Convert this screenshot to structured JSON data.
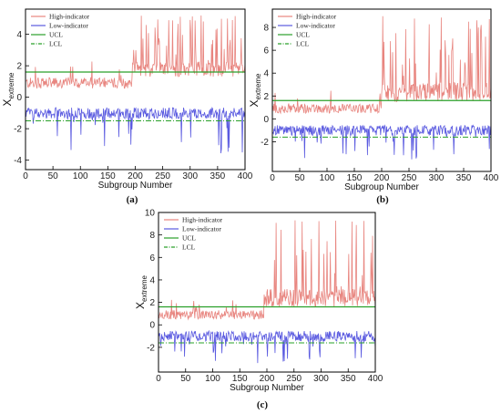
{
  "chart_data": [
    {
      "type": "line",
      "panel_label": "(a)",
      "xlabel": "Subgroup Number",
      "ylabel_main": "X",
      "ylabel_sub": "extreme",
      "xlim": [
        0,
        400
      ],
      "ylim": [
        -4.6,
        5.6
      ],
      "xticks": [
        0,
        50,
        100,
        150,
        200,
        250,
        300,
        350,
        400
      ],
      "yticks": [
        -4,
        -2,
        0,
        2,
        4
      ],
      "ucl": 1.6,
      "lcl": -1.5,
      "legend": [
        {
          "label": "High-indicator",
          "color": "#e8857f",
          "style": "solid"
        },
        {
          "label": "Low-indicator",
          "color": "#5a5ae0",
          "style": "solid"
        },
        {
          "label": "UCL",
          "color": "#2aa02a",
          "style": "solid"
        },
        {
          "label": "LCL",
          "color": "#2aa02a",
          "style": "dashdot"
        }
      ],
      "high_indicator": {
        "base": 0.9,
        "noise": 0.35,
        "shift_at": 195,
        "shift_base": 1.3,
        "shift_noise": 1.6,
        "peak": 5.2
      },
      "low_indicator": {
        "base": -1.0,
        "noise": 0.35,
        "spike_depth": -3.7
      }
    },
    {
      "type": "line",
      "panel_label": "(b)",
      "xlabel": "Subgroup Number",
      "ylabel_main": "X",
      "ylabel_sub": "extreme",
      "xlim": [
        0,
        400
      ],
      "ylim": [
        -4.6,
        9.6
      ],
      "xticks": [
        0,
        50,
        100,
        150,
        200,
        250,
        300,
        350,
        400
      ],
      "yticks": [
        -2,
        0,
        2,
        4,
        6,
        8
      ],
      "ucl": 1.6,
      "lcl": -1.6,
      "legend": [
        {
          "label": "High-indicator",
          "color": "#e8857f",
          "style": "solid"
        },
        {
          "label": "Low-indicator",
          "color": "#5a5ae0",
          "style": "solid"
        },
        {
          "label": "UCL",
          "color": "#2aa02a",
          "style": "solid"
        },
        {
          "label": "LCL",
          "color": "#2aa02a",
          "style": "dashdot"
        }
      ],
      "high_indicator": {
        "base": 0.9,
        "noise": 0.4,
        "shift_at": 200,
        "shift_base": 1.5,
        "shift_noise": 2.8,
        "peak": 9.2
      },
      "low_indicator": {
        "base": -1.0,
        "noise": 0.45,
        "spike_depth": -3.6
      }
    },
    {
      "type": "line",
      "panel_label": "(c)",
      "xlabel": "Subgroup Number",
      "ylabel_main": "X",
      "ylabel_sub": "extreme",
      "xlim": [
        0,
        400
      ],
      "ylim": [
        -4.2,
        10
      ],
      "xticks": [
        0,
        50,
        100,
        150,
        200,
        250,
        300,
        350,
        400
      ],
      "yticks": [
        -2,
        0,
        2,
        4,
        6,
        8,
        10
      ],
      "ucl": 1.6,
      "lcl": -1.6,
      "legend": [
        {
          "label": "High-indicator",
          "color": "#e8857f",
          "style": "solid"
        },
        {
          "label": "Low-indicator",
          "color": "#5a5ae0",
          "style": "solid"
        },
        {
          "label": "UCL",
          "color": "#2aa02a",
          "style": "solid"
        },
        {
          "label": "LCL",
          "color": "#2aa02a",
          "style": "dashdot"
        }
      ],
      "high_indicator": {
        "base": 0.9,
        "noise": 0.4,
        "shift_at": 195,
        "shift_base": 1.6,
        "shift_noise": 2.7,
        "peak": 9.3
      },
      "low_indicator": {
        "base": -1.0,
        "noise": 0.45,
        "spike_depth": -3.4
      }
    }
  ]
}
